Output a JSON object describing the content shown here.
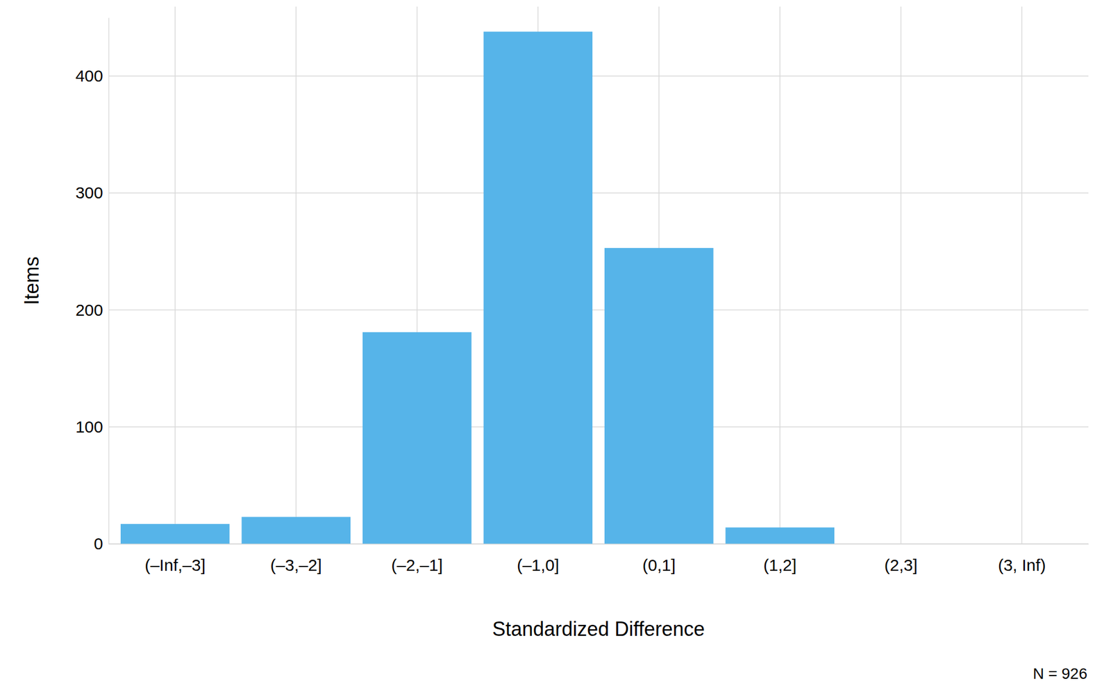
{
  "chart_data": {
    "type": "bar",
    "x_label": "Standardized Difference",
    "y_label": "Items",
    "annotation": "N = 926",
    "categories": [
      "(–Inf,–3]",
      "(–3,–2]",
      "(–2,–1]",
      "(–1,0]",
      "(0,1]",
      "(1,2]",
      "(2,3]",
      "(3, Inf)"
    ],
    "values": [
      17,
      23,
      181,
      438,
      253,
      14,
      0,
      0
    ],
    "color": "#56b4e9",
    "ylim": [
      0,
      450
    ],
    "yticks": [
      0,
      100,
      200,
      300,
      400
    ],
    "grid": true
  }
}
